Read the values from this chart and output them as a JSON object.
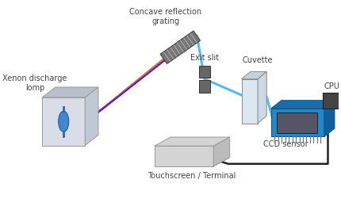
{
  "bg_color": "#ffffff",
  "labels": {
    "xenon": "Xenon discharge\nlomp",
    "grating": "Concave reflection\ngrating",
    "exit_slit": "Exit slit",
    "cuvette": "Cuvette",
    "ccd": "CCD sensor",
    "cpu": "CPU",
    "touchscreen": "Touchscreen / Terminal"
  },
  "rainbow_colors": [
    "#FF0000",
    "#FF5500",
    "#FF9900",
    "#CCCC00",
    "#44BB00",
    "#0077FF",
    "#8800CC"
  ],
  "beam_color": "#55BBEE",
  "lamp_face_color": "#d8dde8",
  "lamp_top_color": "#b8c0cc",
  "lamp_right_color": "#c0c8d4",
  "lamp_edge_color": "#999999",
  "grating_color": "#777777",
  "grating_stripe_color": "#aaaaaa",
  "slit_color": "#666666",
  "cuvette_face_color": "#dce8f0",
  "cuvette_top_color": "#c4d0dc",
  "cuvette_right_color": "#ccd8e4",
  "cuvette_edge_color": "#888888",
  "ccd_pcb_color": "#2288CC",
  "ccd_chip_color": "#555566",
  "cpu_color": "#444444",
  "wire_color": "#222222",
  "ts_body_color": "#d4d4d4",
  "ts_screen_color": "#e8e8e8",
  "font_size": 7.0,
  "label_color": "#444444"
}
